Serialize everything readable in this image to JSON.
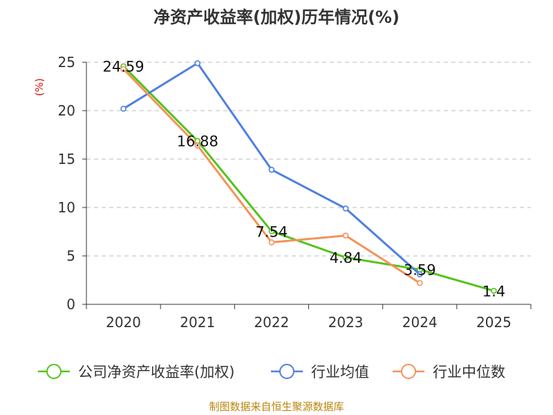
{
  "chart_data": {
    "type": "line",
    "title": "净资产收益率(加权)历年情况(%)",
    "ylabel": "(%)",
    "xlabel": "",
    "categories": [
      "2020",
      "2021",
      "2022",
      "2023",
      "2024",
      "2025"
    ],
    "ylim": [
      0,
      25
    ],
    "yticks": [
      0,
      5,
      10,
      15,
      20,
      25
    ],
    "grid": true,
    "legend_position": "bottom",
    "series": [
      {
        "name": "公司净资产收益率(加权)",
        "color": "#52c41a",
        "values": [
          24.59,
          16.88,
          7.54,
          4.84,
          3.59,
          1.4
        ]
      },
      {
        "name": "行业均值",
        "color": "#4f7fe0",
        "values": [
          20.2,
          24.9,
          13.9,
          9.9,
          3.1,
          null
        ]
      },
      {
        "name": "行业中位数",
        "color": "#f5925a",
        "values": [
          24.3,
          16.4,
          6.4,
          7.1,
          2.2,
          null
        ]
      }
    ],
    "data_labels": [
      "24.59",
      "16.88",
      "7.54",
      "4.84",
      "3.59",
      "1.4"
    ],
    "source": "制图数据来自恒生聚源数据库"
  }
}
